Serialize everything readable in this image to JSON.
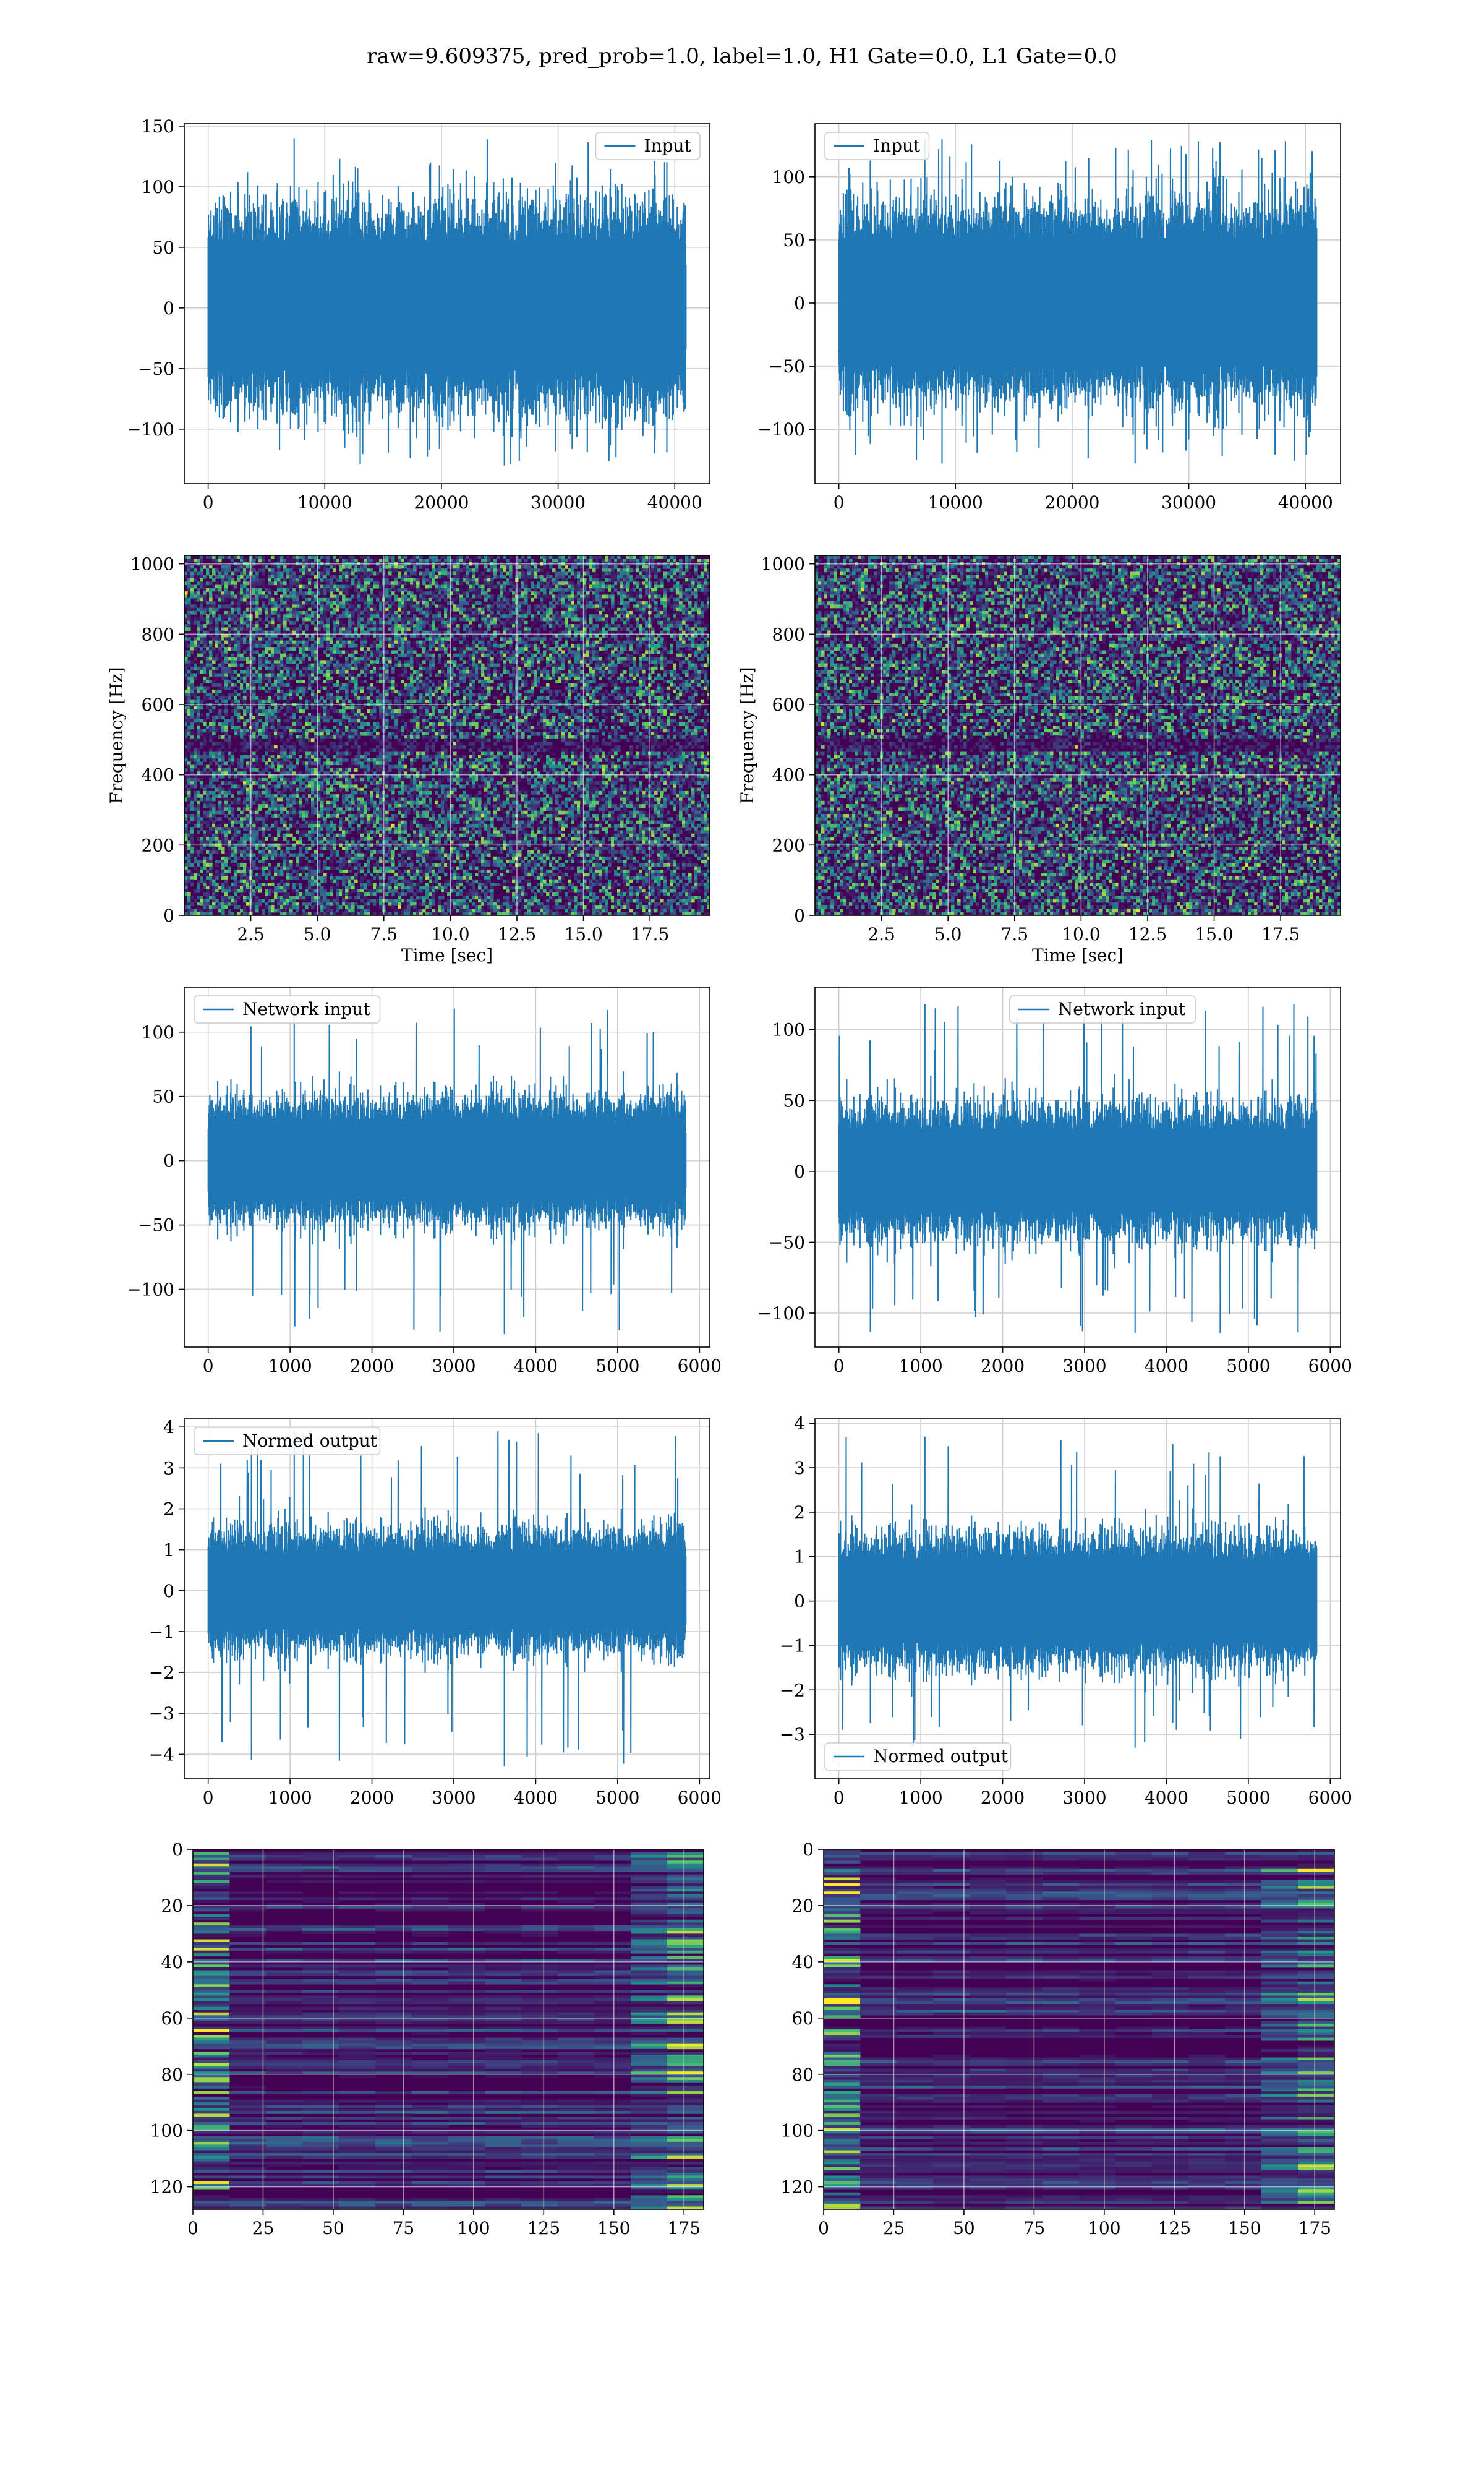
{
  "suptitle": "raw=9.609375, pred_prob=1.0, label=1.0, H1 Gate=0.0, L1 Gate=0.0",
  "colors": {
    "line": "#1f77b4",
    "grid": "#d0d0d0",
    "viridis_dark": "#440154",
    "viridis_mid": "#21918c",
    "viridis_bright": "#fde725"
  },
  "chart_data": [
    {
      "id": "h1-input",
      "type": "line",
      "xlim": [
        -2048,
        43008
      ],
      "ylim": [
        -145,
        152
      ],
      "xticks": [
        0,
        10000,
        20000,
        30000,
        40000
      ],
      "yticks": [
        -100,
        -50,
        0,
        50,
        100,
        150
      ],
      "series": [
        {
          "name": "Input",
          "x_range": [
            0,
            40960
          ],
          "envelope_upper": 78,
          "envelope_lower": -72,
          "peak_max": 140,
          "peak_min": -130
        }
      ],
      "legend": "upper right",
      "grid": true
    },
    {
      "id": "l1-input",
      "type": "line",
      "xlim": [
        -2048,
        43008
      ],
      "ylim": [
        -143,
        142
      ],
      "xticks": [
        0,
        10000,
        20000,
        30000,
        40000
      ],
      "yticks": [
        -100,
        -50,
        0,
        50,
        100
      ],
      "series": [
        {
          "name": "Input",
          "x_range": [
            0,
            40960
          ],
          "envelope_upper": 72,
          "envelope_lower": -70,
          "peak_max": 130,
          "peak_min": -127
        }
      ],
      "legend": "upper left",
      "grid": true
    },
    {
      "id": "h1-spectrogram",
      "type": "heatmap",
      "xlabel": "Time [sec]",
      "ylabel": "Frequency [Hz]",
      "xlim": [
        0,
        19.75
      ],
      "ylim": [
        0,
        1024
      ],
      "xticks": [
        2.5,
        5.0,
        7.5,
        10.0,
        12.5,
        15.0,
        17.5
      ],
      "yticks": [
        0,
        200,
        400,
        600,
        800,
        1000
      ],
      "colormap": "viridis",
      "grid": true
    },
    {
      "id": "l1-spectrogram",
      "type": "heatmap",
      "xlabel": "Time [sec]",
      "ylabel": "Frequency [Hz]",
      "xlim": [
        0,
        19.75
      ],
      "ylim": [
        0,
        1024
      ],
      "xticks": [
        2.5,
        5.0,
        7.5,
        10.0,
        12.5,
        15.0,
        17.5
      ],
      "yticks": [
        0,
        200,
        400,
        600,
        800,
        1000
      ],
      "colormap": "viridis",
      "grid": true
    },
    {
      "id": "h1-network-input",
      "type": "line",
      "xlim": [
        -292,
        6126
      ],
      "ylim": [
        -145,
        135
      ],
      "xticks": [
        0,
        1000,
        2000,
        3000,
        4000,
        5000,
        6000
      ],
      "yticks": [
        -100,
        -50,
        0,
        50,
        100
      ],
      "series": [
        {
          "name": "Network input",
          "x_range": [
            0,
            5834
          ],
          "envelope_upper": 45,
          "envelope_lower": -42,
          "peak_max": 124,
          "peak_min": -135
        }
      ],
      "legend": "upper left",
      "grid": true
    },
    {
      "id": "l1-network-input",
      "type": "line",
      "xlim": [
        -292,
        6126
      ],
      "ylim": [
        -124,
        130
      ],
      "xticks": [
        0,
        1000,
        2000,
        3000,
        4000,
        5000,
        6000
      ],
      "yticks": [
        -100,
        -50,
        0,
        50,
        100
      ],
      "series": [
        {
          "name": "Network input",
          "x_range": [
            0,
            5834
          ],
          "envelope_upper": 42,
          "envelope_lower": -40,
          "peak_max": 118,
          "peak_min": -114
        }
      ],
      "legend": "upper center",
      "grid": true
    },
    {
      "id": "h1-normed-output",
      "type": "line",
      "xlim": [
        -292,
        6126
      ],
      "ylim": [
        -4.6,
        4.2
      ],
      "xticks": [
        0,
        1000,
        2000,
        3000,
        4000,
        5000,
        6000
      ],
      "yticks": [
        -4,
        -3,
        -2,
        -1,
        0,
        1,
        2,
        3,
        4
      ],
      "series": [
        {
          "name": "Normed output",
          "x_range": [
            0,
            5834
          ],
          "envelope_upper": 1.35,
          "envelope_lower": -1.3,
          "peak_max": 3.9,
          "peak_min": -4.3
        }
      ],
      "legend": "upper left",
      "grid": true
    },
    {
      "id": "l1-normed-output",
      "type": "line",
      "xlim": [
        -292,
        6126
      ],
      "ylim": [
        -4.0,
        4.1
      ],
      "xticks": [
        0,
        1000,
        2000,
        3000,
        4000,
        5000,
        6000
      ],
      "yticks": [
        -3,
        -2,
        -1,
        0,
        1,
        2,
        3,
        4
      ],
      "series": [
        {
          "name": "Normed output",
          "x_range": [
            0,
            5834
          ],
          "envelope_upper": 1.35,
          "envelope_lower": -1.3,
          "peak_max": 3.7,
          "peak_min": -3.3
        }
      ],
      "legend": "lower left",
      "grid": true
    },
    {
      "id": "h1-feature-map",
      "type": "heatmap",
      "xlim": [
        0,
        182
      ],
      "ylim": [
        128,
        0
      ],
      "xticks": [
        0,
        25,
        50,
        75,
        100,
        125,
        150,
        175
      ],
      "yticks": [
        0,
        20,
        40,
        60,
        80,
        100,
        120
      ],
      "colormap": "viridis",
      "grid": true
    },
    {
      "id": "l1-feature-map",
      "type": "heatmap",
      "xlim": [
        0,
        182
      ],
      "ylim": [
        128,
        0
      ],
      "xticks": [
        0,
        25,
        50,
        75,
        100,
        125,
        150,
        175
      ],
      "yticks": [
        0,
        20,
        40,
        60,
        80,
        100,
        120
      ],
      "colormap": "viridis",
      "grid": true
    }
  ]
}
